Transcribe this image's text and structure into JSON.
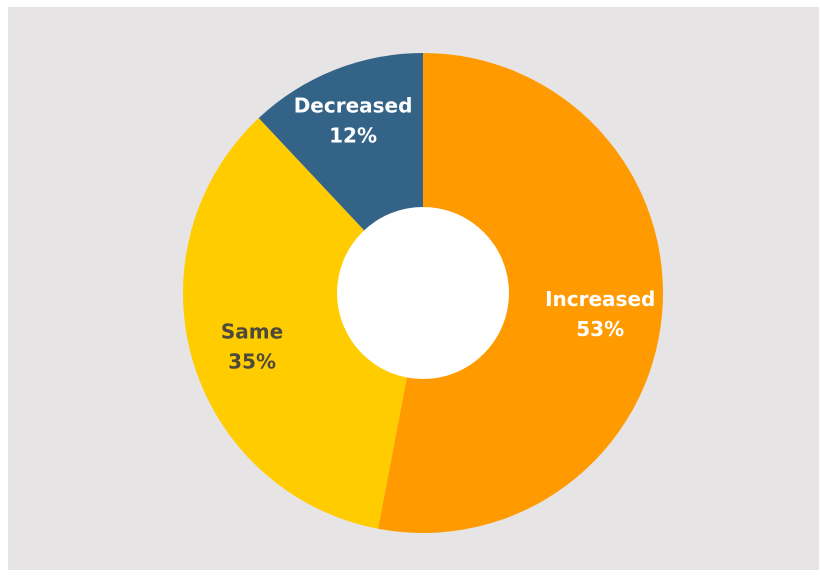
{
  "chart_data": {
    "type": "pie",
    "donut": true,
    "title": "",
    "slices": [
      {
        "label": "Increased",
        "value": 53,
        "value_label": "53%",
        "color": "#ff9a00",
        "label_color": "#ffffff"
      },
      {
        "label": "Same",
        "value": 35,
        "value_label": "35%",
        "color": "#ffcc00",
        "label_color": "#4d4a3b"
      },
      {
        "label": "Decreased",
        "value": 12,
        "value_label": "12%",
        "color": "#336488",
        "label_color": "#ffffff"
      }
    ],
    "start_angle": "top",
    "direction": "clockwise",
    "legend": "none",
    "background_color": "#e6e4e5",
    "hole_color": "#ffffff"
  }
}
